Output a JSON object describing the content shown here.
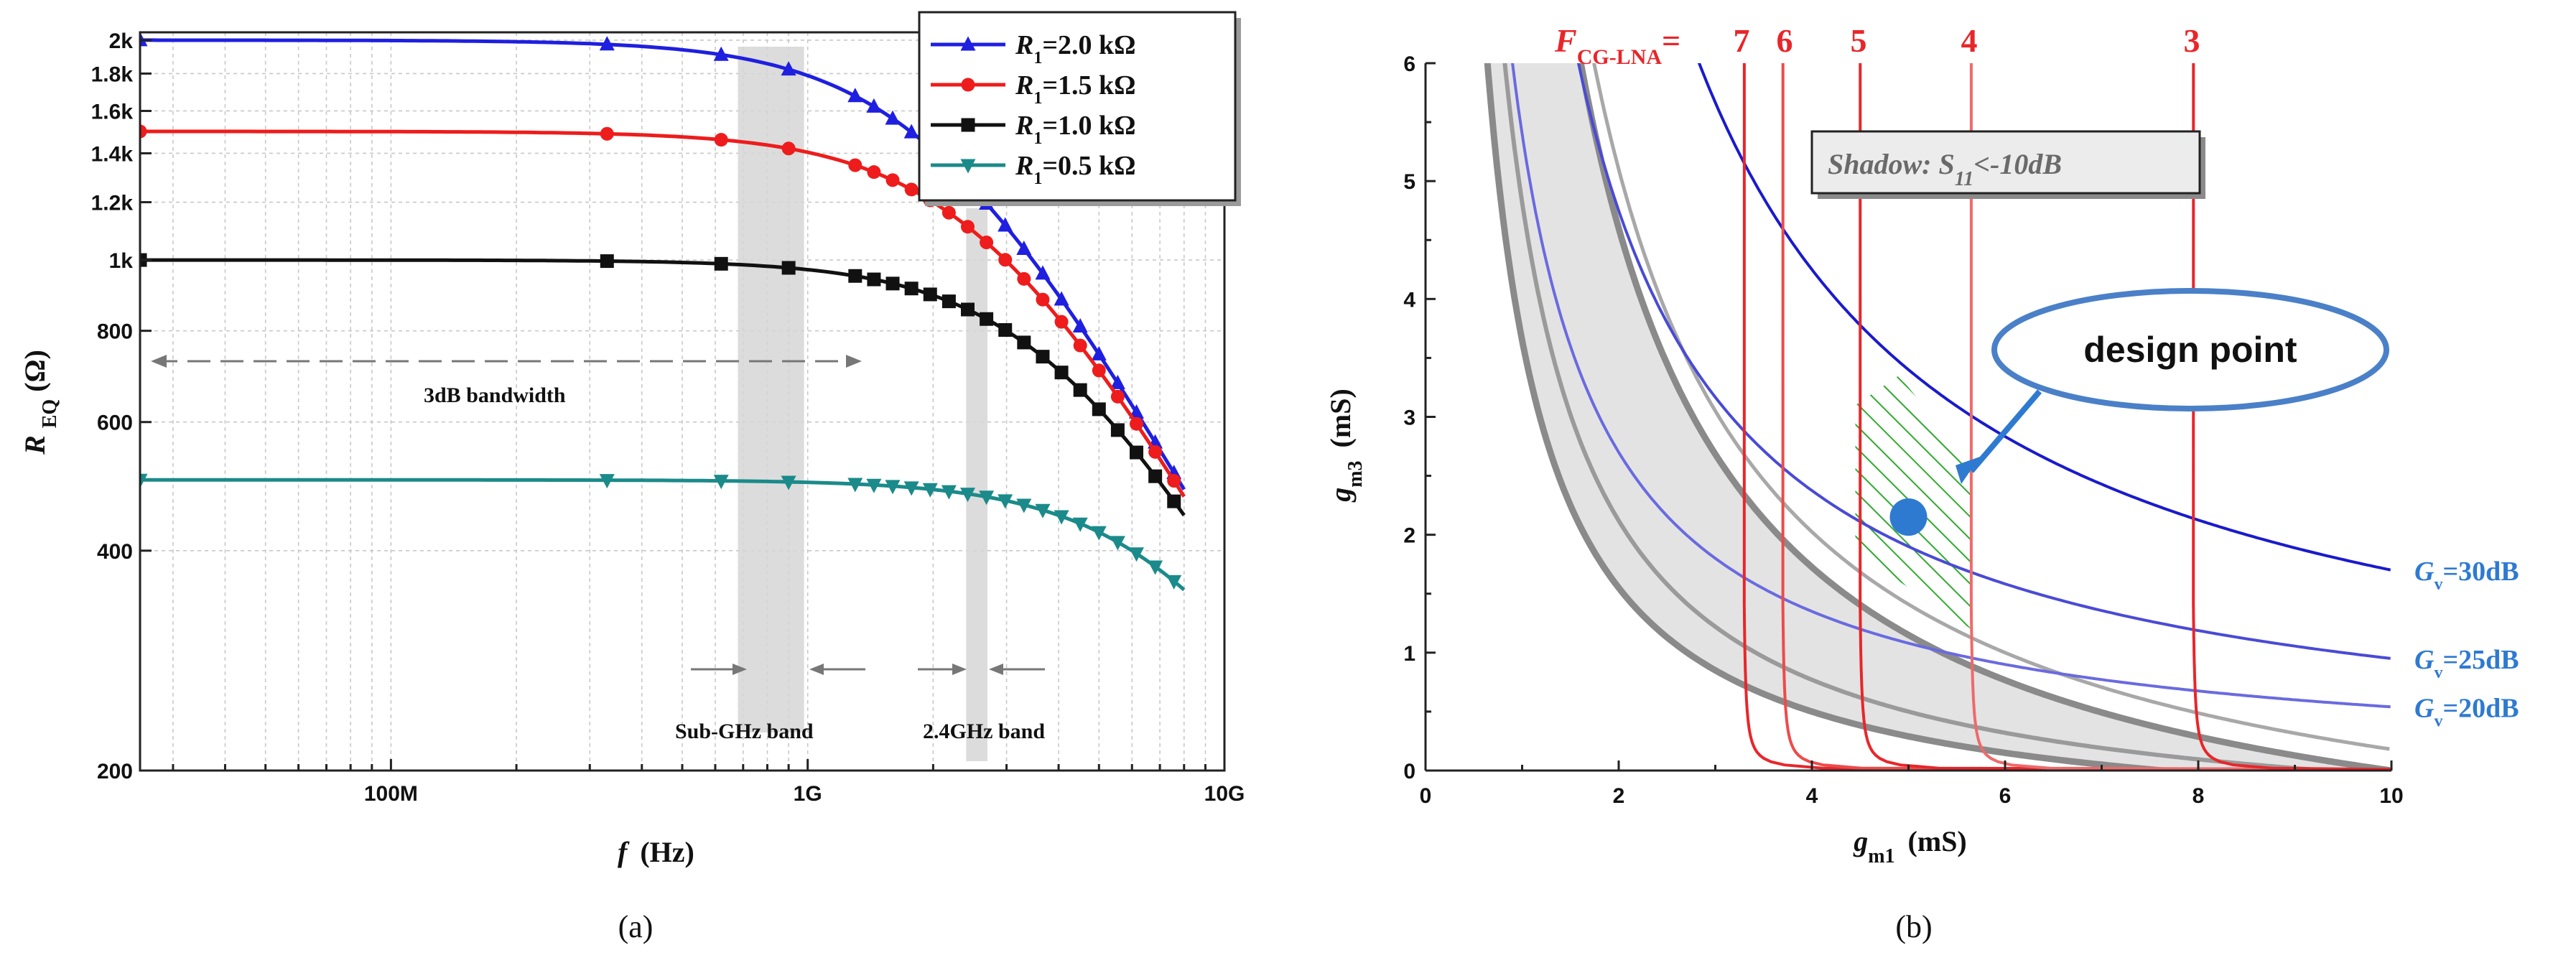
{
  "chart_data": [
    {
      "panel": "(a)",
      "type": "line",
      "xscale": "log",
      "yscale": "log",
      "xlabel": "f (Hz)",
      "xlabel_var": "f",
      "xlabel_unit": "(Hz)",
      "ylabel_var": "R",
      "ylabel_sub": "EQ",
      "ylabel_unit": "(Ω)",
      "xlim": [
        25000000.0,
        10000000000.0
      ],
      "ylim": [
        200,
        2050
      ],
      "x_ticks": [
        {
          "v": 100000000.0,
          "label": "100M"
        },
        {
          "v": 1000000000.0,
          "label": "1G"
        },
        {
          "v": 10000000000.0,
          "label": "10G"
        }
      ],
      "y_ticks": [
        {
          "v": 200,
          "label": "200"
        },
        {
          "v": 400,
          "label": "400"
        },
        {
          "v": 600,
          "label": "600"
        },
        {
          "v": 800,
          "label": "800"
        },
        {
          "v": 1000,
          "label": "1k"
        },
        {
          "v": 1200,
          "label": "1.2k"
        },
        {
          "v": 1400,
          "label": "1.4k"
        },
        {
          "v": 1600,
          "label": "1.6k"
        },
        {
          "v": 1800,
          "label": "1.8k"
        },
        {
          "v": 2000,
          "label": "2k"
        }
      ],
      "series": [
        {
          "name": "R1=2.0 kΩ",
          "label_pre": "R",
          "label_sub": "1",
          "label_val": "=2.0 kΩ",
          "color": "#1f1fe0",
          "marker": "triangle-up",
          "r_low": 2000
        },
        {
          "name": "R1=1.5 kΩ",
          "label_pre": "R",
          "label_sub": "1",
          "label_val": "=1.5 kΩ",
          "color": "#ee1c1c",
          "marker": "circle",
          "r_low": 1500
        },
        {
          "name": "R1=1.0 kΩ",
          "label_pre": "R",
          "label_sub": "1",
          "label_val": "=1.0 kΩ",
          "color": "#111111",
          "marker": "square",
          "r_low": 1000
        },
        {
          "name": "R1=0.5 kΩ",
          "label_pre": "R",
          "label_sub": "1",
          "label_val": "=0.5 kΩ",
          "color": "#1b8a8a",
          "marker": "triangle-down",
          "r_low": 500
        }
      ],
      "highlight_bands": [
        {
          "name": "Sub-GHz band",
          "x_start": 680000000.0,
          "x_end": 980000000.0
        },
        {
          "name": "2.4GHz band",
          "x_start": 2400000000.0,
          "x_end": 2700000000.0
        }
      ],
      "annotations": {
        "bandwidth": "3dB bandwidth",
        "sub_ghz": "Sub-GHz band",
        "ghz24": "2.4GHz band"
      },
      "caption": "(a)"
    },
    {
      "panel": "(b)",
      "type": "line",
      "xlabel_var": "g",
      "xlabel_sub": "m1",
      "xlabel_unit": "(mS)",
      "ylabel_var": "g",
      "ylabel_sub": "m3",
      "ylabel_unit": "(mS)",
      "xlim": [
        0,
        10
      ],
      "ylim": [
        0,
        6
      ],
      "x_ticks": [
        0,
        2,
        4,
        6,
        8,
        10
      ],
      "y_ticks": [
        0,
        1,
        2,
        3,
        4,
        5,
        6
      ],
      "noise_figure_title": "F",
      "noise_figure_sub": "CG-LNA",
      "noise_figure_eq": "=",
      "noise_figure_contours": [
        {
          "label": "7",
          "gm1_asymptote": 3.3,
          "color": "#e8262a"
        },
        {
          "label": "6",
          "gm1_asymptote": 3.7,
          "color": "#ee4a4a"
        },
        {
          "label": "5",
          "gm1_asymptote": 4.5,
          "color": "#e8262a"
        },
        {
          "label": "4",
          "gm1_asymptote": 5.65,
          "color": "#ee6a6a"
        },
        {
          "label": "3",
          "gm1_asymptote": 7.95,
          "color": "#e8262a"
        }
      ],
      "gain_contours": [
        {
          "label_var": "G",
          "label_sub": "v",
          "label_val": "=30dB",
          "k": 17,
          "color": "#1a1acc"
        },
        {
          "label_var": "G",
          "label_sub": "v",
          "label_val": "=25dB",
          "k": 9.5,
          "color": "#4a4ad6"
        },
        {
          "label_var": "G",
          "label_sub": "v",
          "label_val": "=20dB",
          "k": 5.4,
          "color": "#6a6ae0"
        }
      ],
      "shadow_text_pre": "Shadow: S",
      "shadow_text_sub": "11",
      "shadow_text_post": "<-10dB",
      "design_point_label": "design point",
      "design_point": {
        "gm1": 5.0,
        "gm3": 2.15
      },
      "accent_color": "#2e7ad1",
      "hatch_color": "#2faa2f",
      "caption": "(b)"
    }
  ]
}
